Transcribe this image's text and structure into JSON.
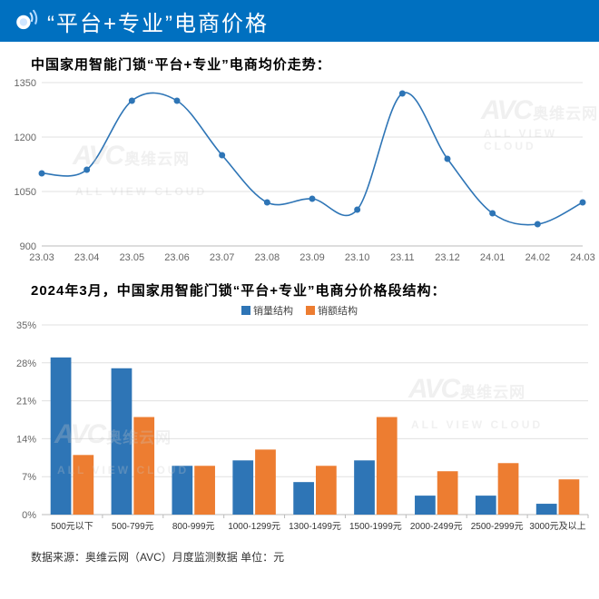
{
  "header": {
    "title": "“平台+专业”电商价格",
    "accent_color": "#0070c0"
  },
  "watermark": {
    "main": "AVC",
    "cn": "奥维云网",
    "en": "ALL VIEW CLOUD",
    "color": "rgba(200,200,200,0.28)"
  },
  "line_chart": {
    "type": "line",
    "title": "中国家用智能门锁“平台+专业”电商均价走势：",
    "x_labels": [
      "23.03",
      "23.04",
      "23.05",
      "23.06",
      "23.07",
      "23.08",
      "23.09",
      "23.10",
      "23.11",
      "23.12",
      "24.01",
      "24.02",
      "24.03"
    ],
    "y_values": [
      1100,
      1110,
      1300,
      1300,
      1150,
      1020,
      1030,
      1000,
      1320,
      1140,
      990,
      960,
      1020
    ],
    "y_ticks": [
      900,
      1050,
      1200,
      1350
    ],
    "ylim": [
      900,
      1350
    ],
    "line_color": "#2e75b6",
    "marker_color": "#2e75b6",
    "marker_size": 3.5,
    "line_width": 1.6,
    "grid_color": "#e0e0e0",
    "axis_fontsize": 11
  },
  "bar_chart": {
    "type": "bar",
    "title": "2024年3月，中国家用智能门锁“平台+专业”电商分价格段结构：",
    "legend": {
      "series_a": "销量结构",
      "series_b": "销额结构"
    },
    "categories": [
      "500元以下",
      "500-799元",
      "800-999元",
      "1000-1299元",
      "1300-1499元",
      "1500-1999元",
      "2000-2499元",
      "2500-2999元",
      "3000元及以上"
    ],
    "series_a": [
      29,
      27,
      9,
      10,
      6,
      10,
      3.5,
      3.5,
      2
    ],
    "series_b": [
      11,
      18,
      9,
      12,
      9,
      18,
      8,
      9.5,
      6.5
    ],
    "y_ticks": [
      0,
      7,
      14,
      21,
      28,
      35
    ],
    "ylim": [
      0,
      35
    ],
    "color_a": "#2e75b6",
    "color_b": "#ed7d31",
    "bar_width": 0.34,
    "grid_color": "#e0e0e0",
    "axis_fontsize": 11,
    "x_fontsize": 10
  },
  "footer": {
    "source_label": "数据来源：奥维云网（AVC）月度监测数据    单位：元"
  }
}
